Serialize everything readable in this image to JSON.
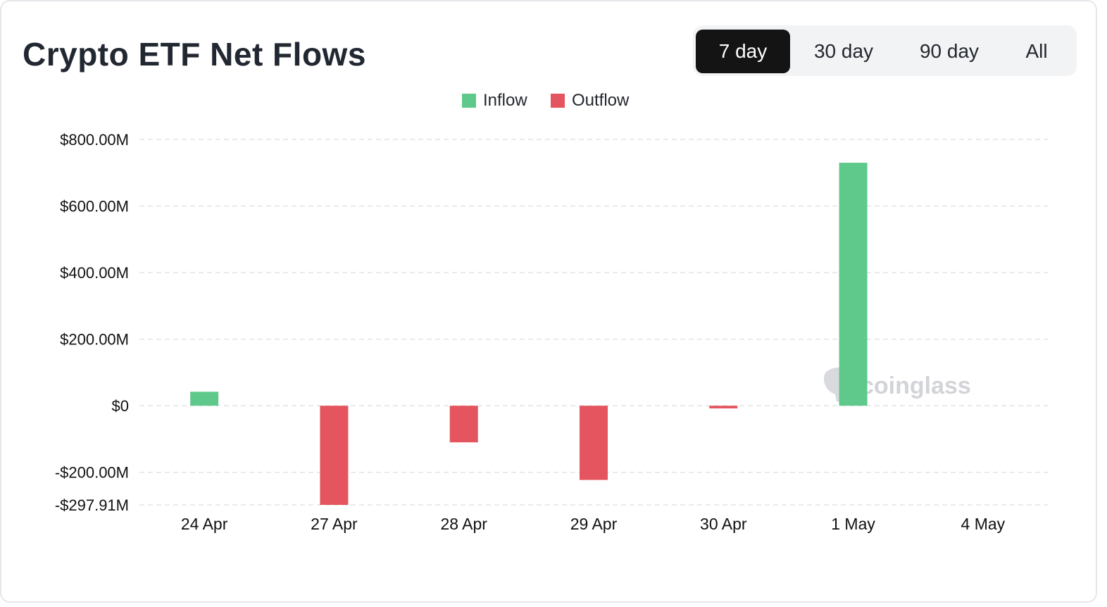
{
  "header": {
    "title": "Crypto ETF Net Flows"
  },
  "range_tabs": [
    {
      "label": "7 day",
      "active": true
    },
    {
      "label": "30 day",
      "active": false
    },
    {
      "label": "90 day",
      "active": false
    },
    {
      "label": "All",
      "active": false
    }
  ],
  "legend": [
    {
      "label": "Inflow",
      "color": "#5ec98a",
      "icon": "square-swatch"
    },
    {
      "label": "Outflow",
      "color": "#e4555f",
      "icon": "square-swatch"
    }
  ],
  "watermark": {
    "text": "coinglass",
    "icon": "coinglass-logo-icon"
  },
  "chart_data": {
    "type": "bar",
    "title": "Crypto ETF Net Flows",
    "xlabel": "",
    "ylabel": "",
    "categories": [
      "24 Apr",
      "27 Apr",
      "28 Apr",
      "29 Apr",
      "30 Apr",
      "1 May",
      "4 May"
    ],
    "values": [
      42,
      -297.91,
      -110,
      -223,
      -8,
      730,
      null
    ],
    "unit": "M USD",
    "ylim": [
      -297.91,
      800
    ],
    "yticks": [
      {
        "value": 800,
        "label": "$800.00M"
      },
      {
        "value": 600,
        "label": "$600.00M"
      },
      {
        "value": 400,
        "label": "$400.00M"
      },
      {
        "value": 200,
        "label": "$200.00M"
      },
      {
        "value": 0,
        "label": "$0"
      },
      {
        "value": -200,
        "label": "-$200.00M"
      },
      {
        "value": -297.91,
        "label": "-$297.91M"
      }
    ],
    "grid": true,
    "legend_position": "top-center",
    "colors": {
      "inflow": "#5ec98a",
      "outflow": "#e4555f",
      "grid": "#e3e3e3"
    }
  }
}
